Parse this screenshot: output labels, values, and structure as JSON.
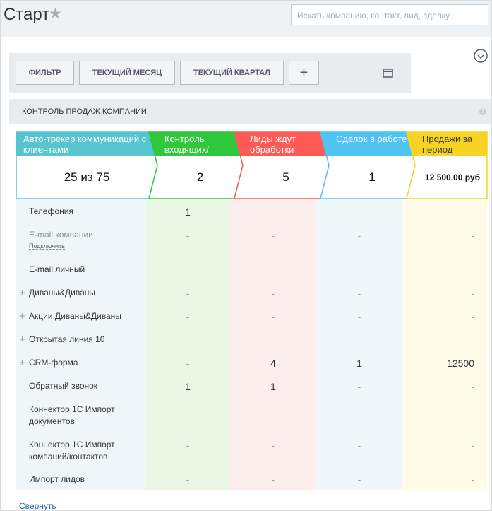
{
  "header": {
    "title": "Старт",
    "search_placeholder": "Искать компанию, контакт, лид, сделку..."
  },
  "toolbar": {
    "buttons": [
      "ФИЛЬТР",
      "ТЕКУЩИЙ МЕСЯЦ",
      "ТЕКУЩИЙ КВАРТАЛ",
      "+"
    ]
  },
  "section": {
    "title": "КОНТРОЛЬ ПРОДАЖ КОМПАНИИ"
  },
  "columns": [
    {
      "label": "Авто-трекер коммуникаций с клиентами",
      "total": "25 из 75"
    },
    {
      "label": "Контроль входящих/исходящих",
      "total": 2
    },
    {
      "label": "Лиды ждут обработки",
      "total": 5
    },
    {
      "label": "Сделок в работе",
      "total": 1
    },
    {
      "label": "Продажи за период",
      "total": "12 500.00 руб"
    }
  ],
  "rows": [
    {
      "name": "Телефония",
      "values": [
        1,
        "-",
        "-",
        "-"
      ]
    },
    {
      "name": "E-mail компании",
      "link": "Подключить",
      "values": [
        "-",
        "-",
        "-",
        "-"
      ]
    },
    {
      "name": "E-mail личный",
      "values": [
        "-",
        "-",
        "-",
        "-"
      ]
    },
    {
      "name": "Диваны&Диваны",
      "expand": "+",
      "values": [
        "-",
        "-",
        "-",
        "-"
      ]
    },
    {
      "name": "Акции Диваны&Диваны",
      "expand": "+",
      "values": [
        "-",
        "-",
        "-",
        "-"
      ]
    },
    {
      "name": "Открытая линия 10",
      "expand": "+",
      "values": [
        "-",
        "-",
        "-",
        "-"
      ]
    },
    {
      "name": "CRM-форма",
      "expand": "+",
      "values": [
        "-",
        4,
        1,
        12500
      ]
    },
    {
      "name": "Обратный звонок",
      "values": [
        1,
        1,
        "-",
        "-"
      ]
    },
    {
      "name": "Коннектор 1С Импорт документов",
      "values": [
        "-",
        "-",
        "-",
        "-"
      ]
    },
    {
      "name": "Коннектор 1С Импорт компаний/контактов",
      "values": [
        "-",
        "-",
        "-",
        "-"
      ]
    },
    {
      "name": "Импорт лидов",
      "values": [
        "-",
        "-",
        "-",
        "-"
      ]
    }
  ],
  "footer": {
    "collapse": "Свернуть"
  }
}
